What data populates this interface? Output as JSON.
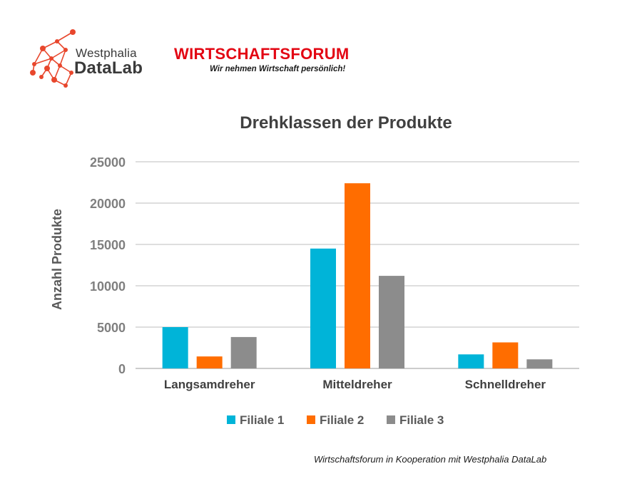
{
  "logos": {
    "westphalia_line1": "Westphalia",
    "westphalia_line2": "DataLab",
    "westphalia_accent": "#e8472d",
    "wf_title": "WIRTSCHAFTSFORUM",
    "wf_subtitle": "Wir nehmen Wirtschaft persönlich!",
    "wf_color": "#e30613"
  },
  "chart_data": {
    "type": "bar",
    "title": "Drehklassen der Produkte",
    "xlabel": "",
    "ylabel": "Anzahl Produkte",
    "ylim": [
      0,
      25000
    ],
    "yticks": [
      0,
      5000,
      10000,
      15000,
      20000,
      25000
    ],
    "categories": [
      "Langsamdreher",
      "Mitteldreher",
      "Schnelldreher"
    ],
    "series": [
      {
        "name": "Filiale 1",
        "color": "#00b4d8",
        "values": [
          5000,
          14500,
          1700
        ]
      },
      {
        "name": "Filiale 2",
        "color": "#ff6d00",
        "values": [
          1450,
          22400,
          3150
        ]
      },
      {
        "name": "Filiale 3",
        "color": "#8c8c8c",
        "values": [
          3800,
          11200,
          1100
        ]
      }
    ],
    "grid": true,
    "legend_position": "bottom"
  },
  "footer": "Wirtschaftsforum in Kooperation mit Westphalia DataLab"
}
